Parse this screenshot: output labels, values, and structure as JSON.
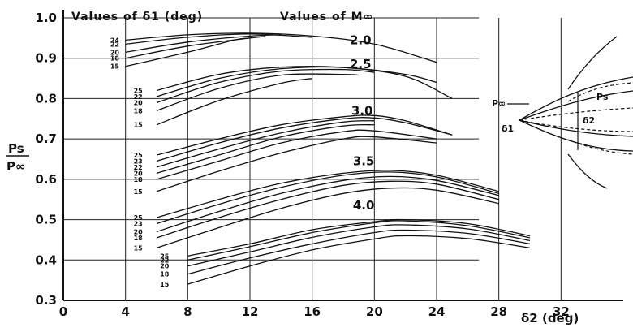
{
  "chart_data": {
    "type": "line",
    "header_left": "Values of δ1 (deg)",
    "header_right": "Values of M∞",
    "ylabel_num": "Ps",
    "ylabel_den": "P∞",
    "xlabel": "δ2 (deg)",
    "xlim": [
      0,
      36
    ],
    "ylim": [
      0.3,
      1.0
    ],
    "x_ticks": [
      "0",
      "4",
      "8",
      "12",
      "16",
      "20",
      "24",
      "28",
      "32"
    ],
    "y_ticks": [
      "0.3",
      "0.4",
      "0.5",
      "0.6",
      "0.7",
      "0.8",
      "0.9",
      "1.0"
    ],
    "groups": [
      {
        "mach": "2.0",
        "label_at": [
          18,
          0.945
        ],
        "delta_label_x": 3.6,
        "series": [
          {
            "delta1": "24",
            "points": [
              [
                4,
                0.945
              ],
              [
                8,
                0.958
              ],
              [
                12,
                0.962
              ],
              [
                16,
                0.955
              ],
              [
                20,
                0.935
              ],
              [
                24,
                0.89
              ]
            ]
          },
          {
            "delta1": "22",
            "points": [
              [
                4,
                0.935
              ],
              [
                8,
                0.952
              ],
              [
                12,
                0.96
              ],
              [
                16,
                0.952
              ]
            ]
          },
          {
            "delta1": "20",
            "points": [
              [
                4,
                0.915
              ],
              [
                8,
                0.94
              ],
              [
                12,
                0.955
              ],
              [
                14,
                0.958
              ]
            ]
          },
          {
            "delta1": "18",
            "points": [
              [
                4,
                0.9
              ],
              [
                8,
                0.93
              ],
              [
                12,
                0.95
              ],
              [
                13,
                0.954
              ]
            ]
          },
          {
            "delta1": "15",
            "points": [
              [
                4,
                0.88
              ],
              [
                8,
                0.915
              ],
              [
                11,
                0.945
              ],
              [
                12,
                0.95
              ]
            ]
          }
        ]
      },
      {
        "mach": "2.5",
        "label_at": [
          18,
          0.885
        ],
        "delta_label_x": 5.1,
        "series": [
          {
            "delta1": "25",
            "points": [
              [
                6,
                0.82
              ],
              [
                10,
                0.86
              ],
              [
                14,
                0.878
              ],
              [
                18,
                0.877
              ],
              [
                22,
                0.855
              ],
              [
                25,
                0.8
              ]
            ]
          },
          {
            "delta1": "22",
            "points": [
              [
                6,
                0.805
              ],
              [
                10,
                0.85
              ],
              [
                14,
                0.874
              ],
              [
                18,
                0.877
              ],
              [
                22,
                0.86
              ],
              [
                24,
                0.84
              ]
            ]
          },
          {
            "delta1": "20",
            "points": [
              [
                6,
                0.79
              ],
              [
                10,
                0.84
              ],
              [
                14,
                0.868
              ],
              [
                18,
                0.872
              ],
              [
                20,
                0.865
              ]
            ]
          },
          {
            "delta1": "18",
            "points": [
              [
                6,
                0.77
              ],
              [
                10,
                0.825
              ],
              [
                14,
                0.858
              ],
              [
                18,
                0.86
              ],
              [
                19,
                0.858
              ]
            ]
          },
          {
            "delta1": "15",
            "points": [
              [
                6,
                0.735
              ],
              [
                10,
                0.795
              ],
              [
                14,
                0.838
              ],
              [
                16,
                0.85
              ]
            ]
          }
        ]
      },
      {
        "mach": "3.0",
        "label_at": [
          18.1,
          0.77
        ],
        "delta_label_x": 5.1,
        "series": [
          {
            "delta1": "25",
            "points": [
              [
                6,
                0.66
              ],
              [
                10,
                0.7
              ],
              [
                14,
                0.735
              ],
              [
                18,
                0.755
              ],
              [
                20,
                0.758
              ],
              [
                22,
                0.745
              ],
              [
                25,
                0.71
              ]
            ]
          },
          {
            "delta1": "23",
            "points": [
              [
                6,
                0.645
              ],
              [
                10,
                0.69
              ],
              [
                14,
                0.727
              ],
              [
                18,
                0.75
              ],
              [
                20,
                0.752
              ],
              [
                22,
                0.74
              ],
              [
                25,
                0.71
              ]
            ]
          },
          {
            "delta1": "22",
            "points": [
              [
                6,
                0.63
              ],
              [
                10,
                0.675
              ],
              [
                14,
                0.715
              ],
              [
                18,
                0.742
              ],
              [
                20,
                0.745
              ]
            ]
          },
          {
            "delta1": "20",
            "points": [
              [
                6,
                0.615
              ],
              [
                10,
                0.66
              ],
              [
                14,
                0.705
              ],
              [
                18,
                0.732
              ],
              [
                20,
                0.735
              ]
            ]
          },
          {
            "delta1": "18",
            "points": [
              [
                6,
                0.6
              ],
              [
                10,
                0.645
              ],
              [
                14,
                0.69
              ],
              [
                18,
                0.718
              ],
              [
                20,
                0.72
              ],
              [
                24,
                0.7
              ]
            ]
          },
          {
            "delta1": "15",
            "points": [
              [
                6,
                0.57
              ],
              [
                10,
                0.62
              ],
              [
                14,
                0.665
              ],
              [
                18,
                0.7
              ],
              [
                20,
                0.705
              ],
              [
                24,
                0.69
              ]
            ]
          }
        ]
      },
      {
        "mach": "3.5",
        "label_at": [
          18.2,
          0.645
        ],
        "delta_label_x": 5.1,
        "series": [
          {
            "delta1": "25",
            "points": [
              [
                6,
                0.505
              ],
              [
                10,
                0.55
              ],
              [
                14,
                0.59
              ],
              [
                18,
                0.615
              ],
              [
                21,
                0.622
              ],
              [
                24,
                0.61
              ],
              [
                28,
                0.57
              ]
            ]
          },
          {
            "delta1": "23",
            "points": [
              [
                6,
                0.49
              ],
              [
                10,
                0.538
              ],
              [
                14,
                0.58
              ],
              [
                18,
                0.61
              ],
              [
                21,
                0.618
              ],
              [
                24,
                0.606
              ],
              [
                28,
                0.565
              ]
            ]
          },
          {
            "delta1": "20",
            "points": [
              [
                6,
                0.47
              ],
              [
                10,
                0.52
              ],
              [
                14,
                0.565
              ],
              [
                18,
                0.597
              ],
              [
                21,
                0.607
              ],
              [
                24,
                0.597
              ],
              [
                28,
                0.56
              ]
            ]
          },
          {
            "delta1": "18",
            "points": [
              [
                6,
                0.455
              ],
              [
                10,
                0.505
              ],
              [
                14,
                0.55
              ],
              [
                18,
                0.585
              ],
              [
                21,
                0.595
              ],
              [
                24,
                0.588
              ],
              [
                28,
                0.55
              ]
            ]
          },
          {
            "delta1": "15",
            "points": [
              [
                6,
                0.43
              ],
              [
                10,
                0.48
              ],
              [
                14,
                0.528
              ],
              [
                18,
                0.565
              ],
              [
                21,
                0.578
              ],
              [
                24,
                0.573
              ],
              [
                28,
                0.54
              ]
            ]
          }
        ]
      },
      {
        "mach": "4.0",
        "label_at": [
          18.2,
          0.535
        ],
        "delta_label_x": 6.8,
        "series": [
          {
            "delta1": "25",
            "points": [
              [
                8,
                0.41
              ],
              [
                12,
                0.44
              ],
              [
                16,
                0.475
              ],
              [
                20,
                0.495
              ],
              [
                22,
                0.5
              ],
              [
                26,
                0.49
              ],
              [
                30,
                0.46
              ]
            ]
          },
          {
            "delta1": "22",
            "points": [
              [
                8,
                0.4
              ],
              [
                12,
                0.433
              ],
              [
                16,
                0.468
              ],
              [
                20,
                0.492
              ],
              [
                22,
                0.497
              ],
              [
                26,
                0.485
              ],
              [
                30,
                0.455
              ]
            ]
          },
          {
            "delta1": "20",
            "points": [
              [
                8,
                0.385
              ],
              [
                12,
                0.42
              ],
              [
                16,
                0.456
              ],
              [
                20,
                0.482
              ],
              [
                22,
                0.487
              ],
              [
                26,
                0.477
              ],
              [
                30,
                0.448
              ]
            ]
          },
          {
            "delta1": "18",
            "points": [
              [
                8,
                0.365
              ],
              [
                12,
                0.405
              ],
              [
                16,
                0.44
              ],
              [
                20,
                0.468
              ],
              [
                22,
                0.474
              ],
              [
                26,
                0.466
              ],
              [
                30,
                0.44
              ]
            ]
          },
          {
            "delta1": "15",
            "points": [
              [
                8,
                0.34
              ],
              [
                12,
                0.385
              ],
              [
                16,
                0.425
              ],
              [
                20,
                0.452
              ],
              [
                22,
                0.46
              ],
              [
                26,
                0.453
              ],
              [
                30,
                0.43
              ]
            ]
          }
        ]
      }
    ],
    "sketch_labels": {
      "p_inf": "P∞",
      "p_s": "Ps",
      "d1": "δ1",
      "d2": "δ2"
    }
  }
}
